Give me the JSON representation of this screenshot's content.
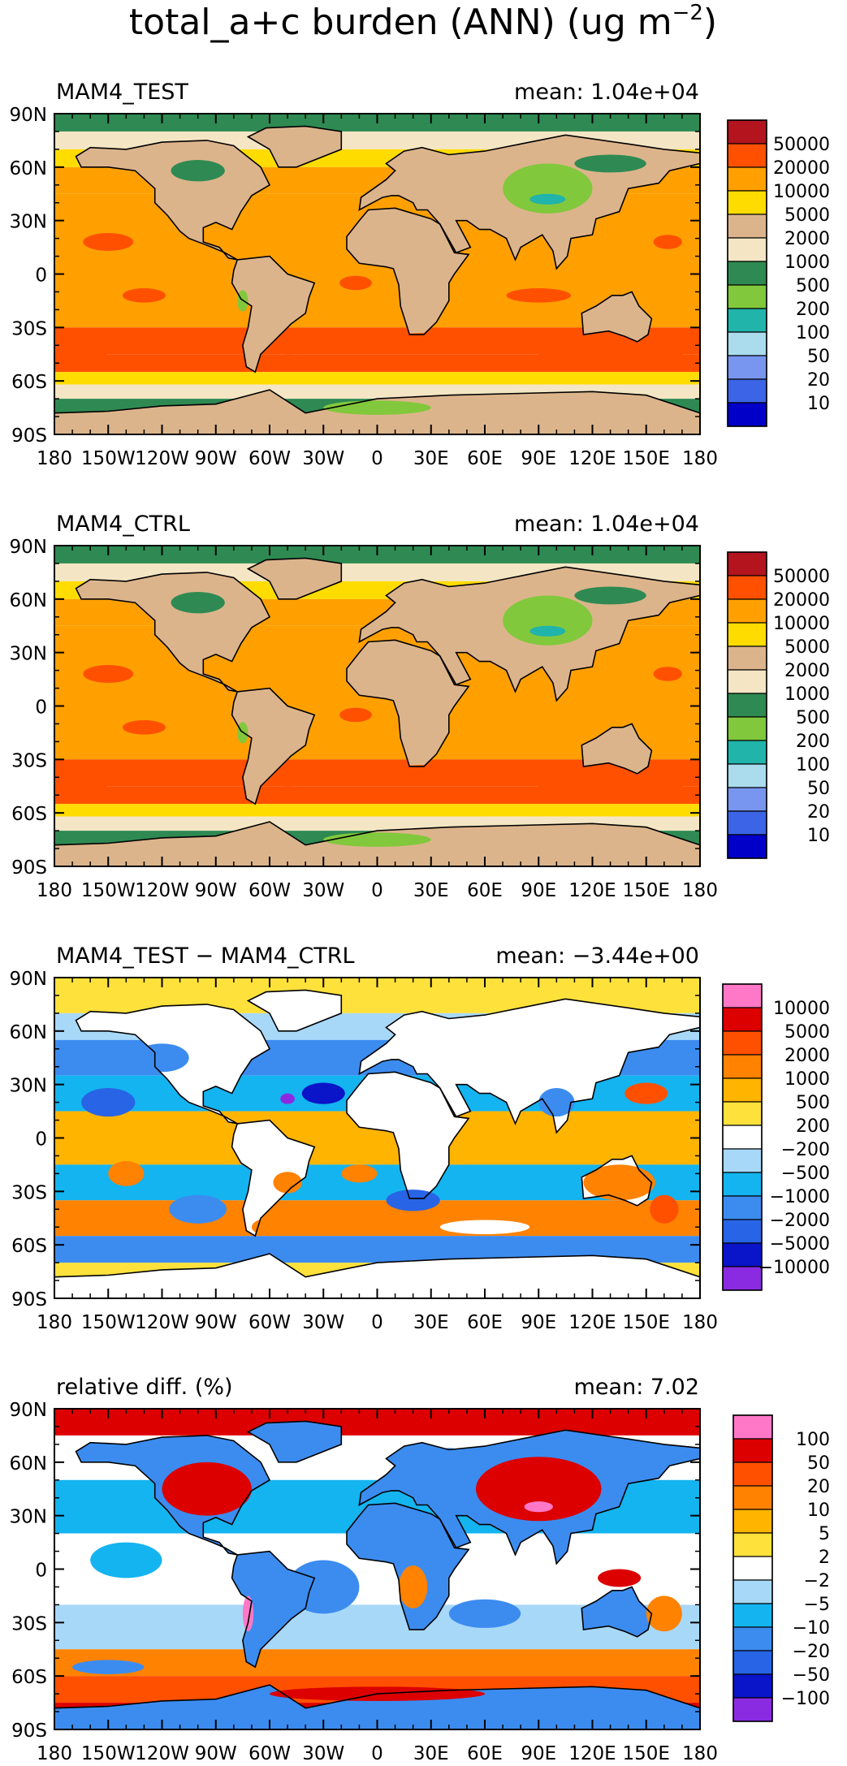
{
  "figure": {
    "title": "total_a+c burden (ANN) (ug m",
    "title_exponent": "−2",
    "title_close": ")"
  },
  "axes": {
    "lat_ticks": [
      "90N",
      "60N",
      "30N",
      "0",
      "30S",
      "60S",
      "90S"
    ],
    "lon_ticks": [
      "180",
      "150W",
      "120W",
      "90W",
      "60W",
      "30W",
      "0",
      "30E",
      "60E",
      "90E",
      "120E",
      "150E",
      "180"
    ]
  },
  "palettes": {
    "abs": [
      "#0000c8",
      "#3c64e6",
      "#7896f0",
      "#aadcee",
      "#20b4aa",
      "#82c83c",
      "#2e8a52",
      "#f4e6c4",
      "#dcb48c",
      "#ffdc00",
      "#ffa000",
      "#ff5000",
      "#b4141e"
    ],
    "diff": [
      "#8a2be2",
      "#0a14c8",
      "#2864e6",
      "#3c8cf0",
      "#14b4f0",
      "#a8d8f8",
      "#ffffff",
      "#ffe13c",
      "#ffb400",
      "#ff8200",
      "#ff5000",
      "#dc0000",
      "#ff78c8"
    ],
    "land": {
      "abs1": "#dcb48c",
      "abs2": "#dcb48c",
      "diff": "#ffffff",
      "rel": "#3c8cf0"
    },
    "ocean": {
      "abs1": "#ffa000",
      "abs2": "#ffa000",
      "diff": "#14b4f0",
      "rel": "#ffffff"
    }
  },
  "panels": [
    {
      "id": "abs1",
      "label": "MAM4_TEST",
      "mean": "mean:  1.04e+04",
      "palette": "abs",
      "colorbar_labels": [
        "50000",
        "20000",
        "10000",
        "5000",
        "2000",
        "1000",
        "500",
        "200",
        "100",
        "50",
        "20",
        "10"
      ]
    },
    {
      "id": "abs2",
      "label": "MAM4_CTRL",
      "mean": "mean:  1.04e+04",
      "palette": "abs",
      "colorbar_labels": [
        "50000",
        "20000",
        "10000",
        "5000",
        "2000",
        "1000",
        "500",
        "200",
        "100",
        "50",
        "20",
        "10"
      ]
    },
    {
      "id": "diff",
      "label": "MAM4_TEST − MAM4_CTRL",
      "mean": "mean: −3.44e+00",
      "palette": "diff",
      "colorbar_labels": [
        "10000",
        "5000",
        "2000",
        "1000",
        "500",
        "200",
        "−200",
        "−500",
        "−1000",
        "−2000",
        "−5000",
        "−10000"
      ]
    },
    {
      "id": "rel",
      "label": "relative diff. (%)",
      "mean": "mean:   7.02",
      "palette": "diff",
      "colorbar_labels": [
        "100",
        "50",
        "20",
        "10",
        "5",
        "2",
        "−2",
        "−5",
        "−10",
        "−20",
        "−50",
        "−100"
      ]
    }
  ]
}
